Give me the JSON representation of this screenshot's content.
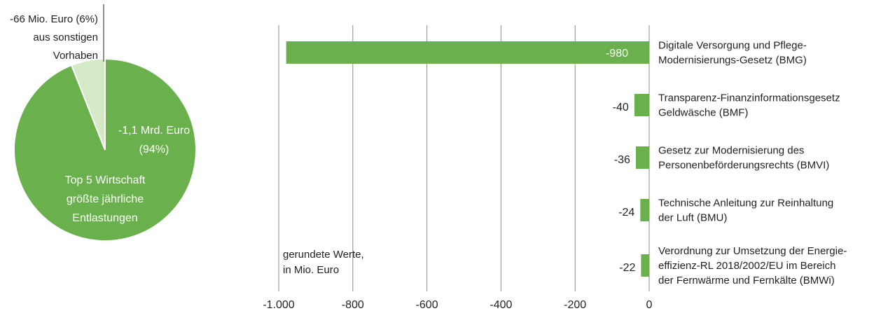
{
  "colors": {
    "green": "#6ab04c",
    "light_green": "#d6e9c6",
    "grid": "#8c8c8c",
    "text": "#222222",
    "white": "#ffffff"
  },
  "chart_data": [
    {
      "type": "pie",
      "slices": [
        {
          "label_lines": [
            "-1,1 Mrd. Euro",
            "(94%)",
            "",
            "Top 5 Wirtschaft",
            "größte jährliche",
            "Entlastungen"
          ],
          "value": 94,
          "color": "#6ab04c"
        },
        {
          "label_lines": [
            "-66 Mio. Euro (6%)",
            "aus sonstigen",
            "Vorhaben"
          ],
          "value": 6,
          "color": "#d6e9c6"
        }
      ]
    },
    {
      "type": "bar",
      "orientation": "horizontal",
      "note_lines": [
        "gerundete Werte,",
        "in Mio. Euro"
      ],
      "xlim": [
        -1000,
        0
      ],
      "xticks": [
        -1000,
        -800,
        -600,
        -400,
        -200,
        0
      ],
      "xtick_labels": [
        "-1.000",
        "-800",
        "-600",
        "-400",
        "-200",
        "0"
      ],
      "grid": true,
      "bars": [
        {
          "value": -980,
          "label": "-980",
          "category_lines": [
            "Digitale Versorgung und Pflege-",
            "Modernisierungs-Gesetz (BMG)"
          ]
        },
        {
          "value": -40,
          "label": "-40",
          "category_lines": [
            "Transparenz-Finanzinformationsgesetz",
            "Geldwäsche (BMF)"
          ]
        },
        {
          "value": -36,
          "label": "-36",
          "category_lines": [
            "Gesetz zur Modernisierung des",
            "Personenbeförderungsrechts (BMVI)"
          ]
        },
        {
          "value": -24,
          "label": "-24",
          "category_lines": [
            "Technische Anleitung zur Reinhaltung",
            "der Luft (BMU)"
          ]
        },
        {
          "value": -22,
          "label": "-22",
          "category_lines": [
            "Verordnung zur Umsetzung der Energie-",
            "effizienz-RL 2018/2002/EU im Bereich",
            "der  Fernwärme und Fernkälte (BMWi)"
          ]
        }
      ]
    }
  ]
}
